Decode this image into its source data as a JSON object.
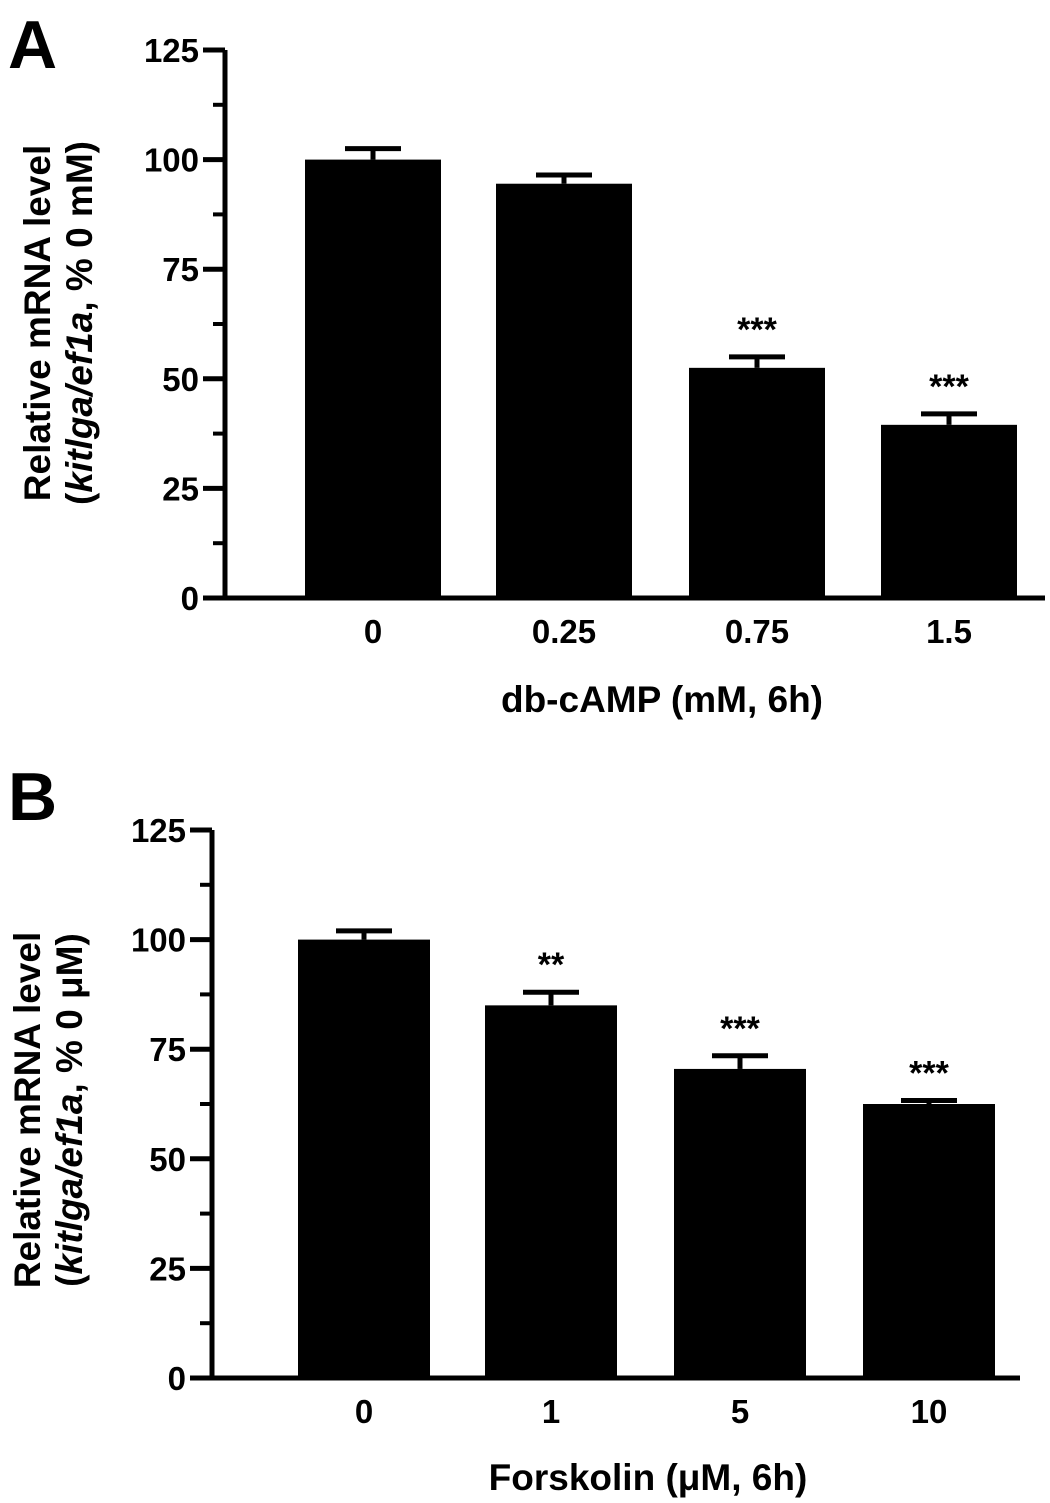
{
  "figure": {
    "panels": [
      "A",
      "B"
    ]
  },
  "chart_data": [
    {
      "type": "bar",
      "panel_label": "A",
      "categories": [
        "0",
        "0.25",
        "0.75",
        "1.5"
      ],
      "values": [
        100,
        94.5,
        52.5,
        39.5
      ],
      "errors": [
        2.5,
        2,
        2.5,
        2.5
      ],
      "significance": [
        "",
        "",
        "***",
        "***"
      ],
      "xlabel": "db-cAMP (mM, 6h)",
      "ylabel_line1": "Relative mRNA level",
      "ylabel_line2_prefix": "(",
      "ylabel_line2_italic": "kitlga/ef1a",
      "ylabel_line2_suffix": ", % 0 mM)",
      "ylim": [
        0,
        125
      ],
      "yticks": [
        "0",
        "25",
        "50",
        "75",
        "100",
        "125"
      ],
      "minor_ticks": true,
      "bar_color": "#000000"
    },
    {
      "type": "bar",
      "panel_label": "B",
      "categories": [
        "0",
        "1",
        "5",
        "10"
      ],
      "values": [
        100,
        85,
        70.5,
        62.5
      ],
      "errors": [
        2,
        3,
        3,
        0.8
      ],
      "significance": [
        "",
        "**",
        "***",
        "***"
      ],
      "xlabel": "Forskolin (μM, 6h)",
      "ylabel_line1": "Relative mRNA level",
      "ylabel_line2_prefix": "(",
      "ylabel_line2_italic": "kitlga/ef1a",
      "ylabel_line2_suffix": ", % 0 μM)",
      "ylim": [
        0,
        125
      ],
      "yticks": [
        "0",
        "25",
        "50",
        "75",
        "100",
        "125"
      ],
      "minor_ticks": true,
      "bar_color": "#000000"
    }
  ]
}
